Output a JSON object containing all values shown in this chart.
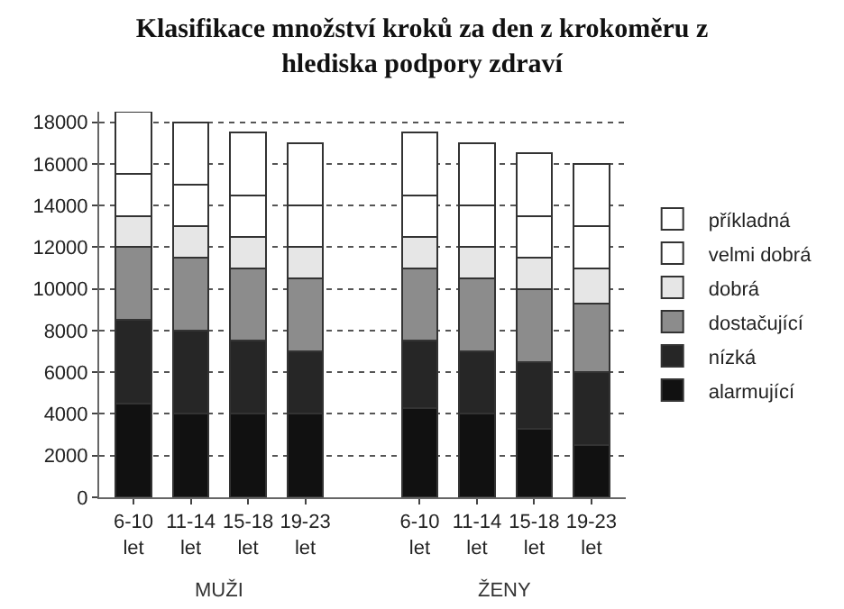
{
  "chart_data": {
    "type": "bar",
    "stacked": true,
    "title": "Klasifikace množství kroků za den z krokoměru z\nhlediska podpory zdraví",
    "categories": [
      "6-10 let",
      "11-14 let",
      "15-18 let",
      "19-23 let",
      null,
      "6-10 let",
      "11-14 let",
      "15-18 let",
      "19-23 let"
    ],
    "series": [
      {
        "name": "alarmující",
        "color": "#111111",
        "values": [
          4500,
          4000,
          4000,
          4000,
          null,
          4300,
          4000,
          3300,
          2500
        ]
      },
      {
        "name": "nízká",
        "color": "#262626",
        "values": [
          4000,
          4000,
          3500,
          3000,
          null,
          3200,
          3000,
          3200,
          3500
        ]
      },
      {
        "name": "dostačující",
        "color": "#8c8c8c",
        "values": [
          3500,
          3500,
          3500,
          3500,
          null,
          3500,
          3500,
          3500,
          3300
        ]
      },
      {
        "name": "dobrá",
        "color": "#e6e6e6",
        "values": [
          1500,
          1500,
          1500,
          1500,
          null,
          1500,
          1500,
          1500,
          1700
        ]
      },
      {
        "name": "velmi dobrá",
        "color": "#ffffff",
        "values": [
          2000,
          2000,
          2000,
          2000,
          null,
          2000,
          2000,
          2000,
          2000
        ]
      },
      {
        "name": "příkladná",
        "color": "#ffffff",
        "values": [
          3000,
          3000,
          3000,
          3000,
          null,
          3000,
          3000,
          3000,
          3000
        ]
      }
    ],
    "annotations": [
      "MUŽI",
      "ŽENY"
    ],
    "ylim": [
      0,
      18500
    ],
    "yticks": [
      0,
      2000,
      4000,
      6000,
      8000,
      10000,
      12000,
      14000,
      16000,
      18000
    ],
    "grid": "y",
    "legend": "right"
  }
}
